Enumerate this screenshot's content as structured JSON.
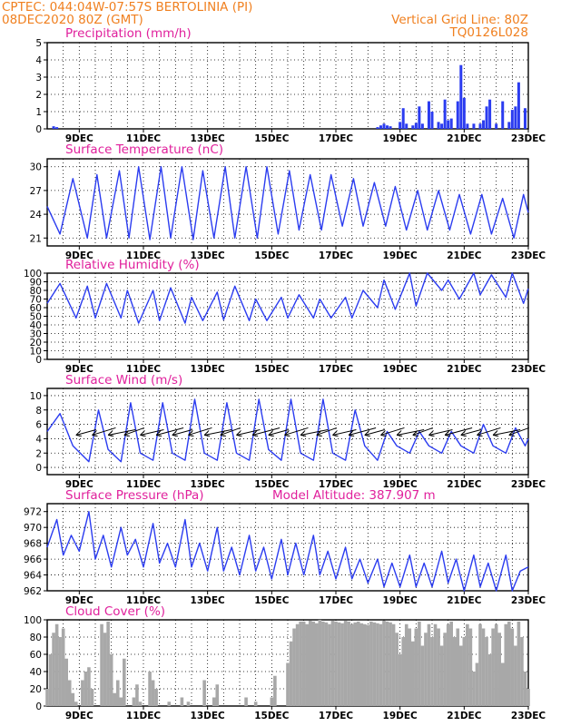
{
  "header": {
    "line1_left": "CPTEC:   044:04W-07:57S   BERTOLINIA (PI)",
    "line2_left": "08DEC2020 80Z (GMT)",
    "line1_right": "Vertical Grid Line: 80Z",
    "line2_right": "TQ0126L028"
  },
  "colors": {
    "header": "#f08020",
    "title": "#e0209c",
    "series": "#2b3cf0",
    "cloud": "#a8a8a8",
    "grid": "#000000"
  },
  "x_tick_labels": [
    "9DEC",
    "11DEC",
    "13DEC",
    "15DEC",
    "17DEC",
    "19DEC",
    "21DEC",
    "23DEC"
  ],
  "chart_data": [
    {
      "type": "bar",
      "title": "Precipitation (mm/h)",
      "ylim": [
        0,
        5
      ],
      "yticks": [
        0,
        1,
        2,
        3,
        4,
        5
      ],
      "xlim": [
        8.0,
        23.0
      ],
      "grid": true,
      "series": [
        {
          "x": [
            8.2,
            8.3,
            18.3,
            18.4,
            18.5,
            18.6,
            18.7,
            19.0,
            19.1,
            19.2,
            19.4,
            19.5,
            19.6,
            19.7,
            19.9,
            20.0,
            20.2,
            20.3,
            20.4,
            20.5,
            20.6,
            20.8,
            20.9,
            21.0,
            21.1,
            21.3,
            21.5,
            21.6,
            21.7,
            21.8,
            22.0,
            22.2,
            22.4,
            22.5,
            22.6,
            22.7,
            22.9
          ],
          "values": [
            0.15,
            0.1,
            0.1,
            0.2,
            0.3,
            0.2,
            0.15,
            0.4,
            1.2,
            0.3,
            0.2,
            0.35,
            1.3,
            0.3,
            1.6,
            1.0,
            0.4,
            0.3,
            1.7,
            0.5,
            0.6,
            1.6,
            3.7,
            1.8,
            0.3,
            0.3,
            0.3,
            0.5,
            1.3,
            1.7,
            0.3,
            1.6,
            0.4,
            1.1,
            1.3,
            2.7,
            1.2
          ]
        }
      ]
    },
    {
      "type": "line",
      "title": "Surface Temperature (nC)",
      "ylim": [
        20,
        31
      ],
      "yticks": [
        21,
        24,
        27,
        30
      ],
      "xlim": [
        8.0,
        23.0
      ],
      "grid": true,
      "series": [
        {
          "x": [
            8.0,
            8.4,
            8.8,
            9.25,
            9.55,
            9.85,
            10.25,
            10.55,
            10.85,
            11.2,
            11.55,
            11.85,
            12.2,
            12.55,
            12.85,
            13.2,
            13.55,
            13.85,
            14.2,
            14.55,
            14.85,
            15.2,
            15.55,
            15.85,
            16.2,
            16.55,
            16.85,
            17.2,
            17.55,
            17.85,
            18.2,
            18.55,
            18.85,
            19.2,
            19.55,
            19.85,
            20.2,
            20.55,
            20.85,
            21.2,
            21.55,
            21.85,
            22.2,
            22.55,
            22.85,
            23.0
          ],
          "values": [
            25,
            21.5,
            28.5,
            21,
            29,
            21,
            29.5,
            21,
            30,
            20.8,
            30,
            21,
            30,
            20.8,
            29.5,
            21,
            30,
            21,
            30,
            21,
            30,
            21.5,
            29.5,
            22,
            29,
            22,
            29,
            22.5,
            28.5,
            22.5,
            28,
            22.5,
            27.5,
            22,
            27,
            22,
            27,
            22,
            26.5,
            21.5,
            26.5,
            21.5,
            26,
            21,
            26.5,
            24.2
          ]
        }
      ]
    },
    {
      "type": "line",
      "title": "Relative Humidity (%)",
      "ylim": [
        0,
        100
      ],
      "yticks": [
        0,
        10,
        20,
        30,
        40,
        50,
        60,
        70,
        80,
        90,
        100
      ],
      "xlim": [
        8.0,
        23.0
      ],
      "grid": true,
      "series": [
        {
          "x": [
            8.0,
            8.4,
            8.9,
            9.25,
            9.5,
            9.85,
            10.3,
            10.5,
            10.85,
            11.3,
            11.5,
            11.85,
            12.3,
            12.5,
            12.85,
            13.3,
            13.5,
            13.85,
            14.3,
            14.5,
            14.85,
            15.3,
            15.5,
            15.85,
            16.3,
            16.5,
            16.85,
            17.3,
            17.5,
            17.85,
            18.3,
            18.5,
            18.85,
            19.3,
            19.5,
            19.85,
            20.3,
            20.5,
            20.85,
            21.3,
            21.5,
            21.85,
            22.3,
            22.5,
            22.85,
            23.0
          ],
          "values": [
            65,
            88,
            48,
            85,
            48,
            88,
            48,
            80,
            42,
            80,
            45,
            83,
            42,
            72,
            45,
            78,
            46,
            85,
            45,
            70,
            45,
            72,
            48,
            75,
            48,
            70,
            48,
            72,
            48,
            80,
            60,
            92,
            58,
            100,
            62,
            100,
            80,
            92,
            70,
            100,
            75,
            98,
            72,
            100,
            65,
            82
          ]
        }
      ]
    },
    {
      "type": "line",
      "title": "Surface Wind (m/s)",
      "ylim": [
        -1,
        11
      ],
      "yticks": [
        0,
        2,
        4,
        6,
        8,
        10
      ],
      "xlim": [
        8.0,
        23.0
      ],
      "grid": true,
      "series": [
        {
          "x": [
            8.0,
            8.4,
            8.8,
            9.3,
            9.6,
            9.9,
            10.3,
            10.6,
            10.9,
            11.3,
            11.6,
            11.9,
            12.3,
            12.6,
            12.9,
            13.3,
            13.6,
            13.9,
            14.3,
            14.6,
            14.9,
            15.3,
            15.6,
            15.9,
            16.3,
            16.6,
            16.9,
            17.3,
            17.6,
            17.9,
            18.3,
            18.6,
            18.9,
            19.3,
            19.6,
            19.9,
            20.3,
            20.6,
            20.9,
            21.3,
            21.6,
            21.9,
            22.3,
            22.6,
            22.9,
            23.0
          ],
          "values": [
            5,
            7.5,
            3,
            0.8,
            8,
            2.5,
            0.8,
            9,
            2,
            1,
            9,
            2,
            1,
            9.5,
            2,
            1,
            9,
            2,
            1,
            9.5,
            2.5,
            1,
            9.5,
            2,
            1,
            9.5,
            2,
            1,
            8,
            3,
            1,
            5,
            3,
            2,
            5,
            3,
            2,
            5,
            3,
            2,
            6,
            3,
            2,
            5.5,
            3,
            4
          ]
        }
      ],
      "wind_arrows": [
        8.9,
        9.4,
        9.9,
        10.4,
        10.9,
        11.4,
        11.9,
        12.4,
        12.9,
        13.4,
        13.9,
        14.4,
        14.9,
        15.4,
        15.9,
        16.4,
        16.9,
        17.4,
        17.9,
        18.4,
        18.9,
        19.4,
        19.9,
        20.4,
        20.9,
        21.4,
        21.9,
        22.4
      ]
    },
    {
      "type": "line",
      "title": "Surface Pressure (hPa)",
      "annotation": "Model Altitude: 387.907 m",
      "ylim": [
        962,
        973
      ],
      "yticks": [
        962,
        964,
        966,
        968,
        970,
        972
      ],
      "xlim": [
        8.0,
        23.0
      ],
      "grid": true,
      "series": [
        {
          "x": [
            8.0,
            8.3,
            8.5,
            8.75,
            9.0,
            9.3,
            9.5,
            9.75,
            10.0,
            10.3,
            10.5,
            10.75,
            11.0,
            11.3,
            11.5,
            11.75,
            12.0,
            12.3,
            12.5,
            12.75,
            13.0,
            13.3,
            13.5,
            13.75,
            14.0,
            14.3,
            14.5,
            14.75,
            15.0,
            15.3,
            15.5,
            15.75,
            16.0,
            16.3,
            16.5,
            16.75,
            17.0,
            17.3,
            17.5,
            17.75,
            18.0,
            18.3,
            18.5,
            18.75,
            19.0,
            19.3,
            19.5,
            19.75,
            20.0,
            20.3,
            20.5,
            20.75,
            21.0,
            21.3,
            21.5,
            21.75,
            22.0,
            22.3,
            22.5,
            22.75,
            23.0
          ],
          "values": [
            967.5,
            971,
            966.5,
            969,
            967,
            972,
            966,
            969,
            965,
            970,
            966.5,
            968.5,
            965,
            970.5,
            965.5,
            968,
            965,
            971,
            965,
            968,
            964.5,
            970,
            964.5,
            967.5,
            964,
            969,
            964.5,
            967.5,
            963.5,
            968.5,
            964,
            968,
            964,
            969,
            964,
            967,
            963.5,
            967.5,
            963.5,
            966,
            963,
            966,
            962.5,
            965.5,
            962.5,
            966.5,
            962.5,
            965.5,
            962.5,
            967,
            963,
            966,
            962,
            966.5,
            962.5,
            965.5,
            962,
            966.5,
            962,
            964.5,
            965
          ]
        }
      ]
    },
    {
      "type": "area",
      "title": "Cloud Cover (%)",
      "ylim": [
        0,
        100
      ],
      "yticks": [
        0,
        20,
        40,
        60,
        80,
        100
      ],
      "xlim": [
        8.0,
        23.0
      ],
      "grid": true,
      "series": [
        {
          "x": [
            8.0,
            8.1,
            8.2,
            8.3,
            8.4,
            8.5,
            8.6,
            8.7,
            8.8,
            8.9,
            9.0,
            9.1,
            9.2,
            9.3,
            9.4,
            9.5,
            9.6,
            9.7,
            9.8,
            9.9,
            10.0,
            10.1,
            10.2,
            10.3,
            10.4,
            10.5,
            10.6,
            10.7,
            10.8,
            10.9,
            11.0,
            11.1,
            11.2,
            11.3,
            11.4,
            11.5,
            11.6,
            11.7,
            11.8,
            11.9,
            12.0,
            12.1,
            12.2,
            12.3,
            12.4,
            12.5,
            12.6,
            12.7,
            12.8,
            12.9,
            13.0,
            13.1,
            13.2,
            13.3,
            13.4,
            13.5,
            13.6,
            13.7,
            13.8,
            13.9,
            14.0,
            14.1,
            14.2,
            14.3,
            14.4,
            14.5,
            14.6,
            14.7,
            14.8,
            14.9,
            15.0,
            15.1,
            15.2,
            15.3,
            15.4,
            15.5,
            15.6,
            15.7,
            15.8,
            15.9,
            16.0,
            16.1,
            16.2,
            16.3,
            16.4,
            16.5,
            16.6,
            16.7,
            16.8,
            16.9,
            17.0,
            17.1,
            17.2,
            17.3,
            17.4,
            17.5,
            17.6,
            17.7,
            17.8,
            17.9,
            18.0,
            18.1,
            18.2,
            18.3,
            18.4,
            18.5,
            18.6,
            18.7,
            18.8,
            18.9,
            19.0,
            19.1,
            19.2,
            19.3,
            19.4,
            19.5,
            19.6,
            19.7,
            19.8,
            19.9,
            20.0,
            20.1,
            20.2,
            20.3,
            20.4,
            20.5,
            20.6,
            20.7,
            20.8,
            20.9,
            21.0,
            21.1,
            21.2,
            21.3,
            21.4,
            21.5,
            21.6,
            21.7,
            21.8,
            21.9,
            22.0,
            22.1,
            22.2,
            22.3,
            22.4,
            22.5,
            22.6,
            22.7,
            22.8,
            22.9,
            23.0
          ],
          "values": [
            20,
            60,
            85,
            95,
            80,
            90,
            55,
            30,
            15,
            5,
            0,
            30,
            40,
            45,
            20,
            0,
            0,
            95,
            85,
            98,
            60,
            15,
            30,
            10,
            55,
            0,
            0,
            10,
            25,
            5,
            0,
            0,
            40,
            30,
            20,
            0,
            0,
            0,
            5,
            0,
            0,
            0,
            10,
            0,
            5,
            0,
            0,
            0,
            0,
            30,
            0,
            0,
            10,
            25,
            0,
            0,
            0,
            0,
            0,
            0,
            0,
            0,
            10,
            0,
            0,
            5,
            0,
            0,
            0,
            0,
            10,
            35,
            0,
            0,
            0,
            50,
            75,
            90,
            95,
            98,
            98,
            95,
            99,
            98,
            96,
            100,
            98,
            97,
            95,
            99,
            98,
            97,
            96,
            99,
            98,
            95,
            97,
            98,
            96,
            95,
            94,
            98,
            97,
            96,
            95,
            99,
            98,
            97,
            95,
            85,
            60,
            80,
            95,
            90,
            75,
            90,
            98,
            70,
            85,
            95,
            80,
            95,
            90,
            70,
            85,
            95,
            98,
            80,
            90,
            70,
            80,
            95,
            90,
            40,
            50,
            95,
            90,
            80,
            60,
            90,
            95,
            85,
            50,
            95,
            98,
            90,
            70,
            98,
            80,
            40,
            20
          ]
        }
      ]
    }
  ]
}
